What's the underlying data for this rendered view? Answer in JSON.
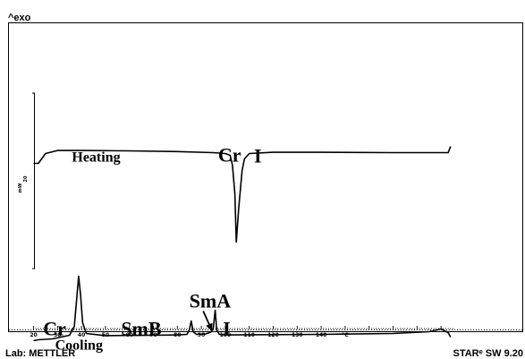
{
  "header": {
    "exo_label": "^exo"
  },
  "footer": {
    "lab_label": "Lab: METTLER",
    "software_label": "STARᵉ SW 9.20"
  },
  "chart_data": {
    "type": "line",
    "x_unit": "°C",
    "xlim": [
      20,
      195
    ],
    "x_ticks": [
      20,
      30,
      40,
      50,
      60,
      70,
      80,
      90,
      100,
      110,
      120,
      130,
      140,
      "°C"
    ],
    "scale_bar": {
      "value": "20",
      "unit": "mW"
    },
    "series": [
      {
        "name": "Heating",
        "color": "#000000",
        "points": [
          [
            20,
            3.0
          ],
          [
            21,
            3.0
          ],
          [
            22,
            3.0
          ],
          [
            25,
            3.55
          ],
          [
            30,
            3.72
          ],
          [
            40,
            3.72
          ],
          [
            60,
            3.7
          ],
          [
            80,
            3.66
          ],
          [
            95,
            3.6
          ],
          [
            100,
            3.55
          ],
          [
            102,
            3.45
          ],
          [
            103,
            2.9
          ],
          [
            104,
            1.3
          ],
          [
            104.6,
            -1.4
          ],
          [
            105.6,
            0.5
          ],
          [
            107,
            2.6
          ],
          [
            108,
            3.25
          ],
          [
            110,
            3.55
          ],
          [
            120,
            3.62
          ],
          [
            140,
            3.62
          ],
          [
            170,
            3.6
          ],
          [
            190,
            3.6
          ],
          [
            193,
            3.6
          ],
          [
            194,
            3.95
          ]
        ]
      },
      {
        "name": "Cooling",
        "color": "#000000",
        "points": [
          [
            20,
            -6.9
          ],
          [
            22,
            -6.85
          ],
          [
            28,
            -6.8
          ],
          [
            35,
            -6.6
          ],
          [
            37,
            -6.1
          ],
          [
            38,
            -4.6
          ],
          [
            38.8,
            -3.3
          ],
          [
            39.6,
            -4.3
          ],
          [
            40.5,
            -5.9
          ],
          [
            42,
            -6.5
          ],
          [
            50,
            -6.62
          ],
          [
            70,
            -6.6
          ],
          [
            80,
            -6.58
          ],
          [
            84,
            -6.55
          ],
          [
            85,
            -6.3
          ],
          [
            85.8,
            -5.8
          ],
          [
            86.6,
            -6.4
          ],
          [
            88,
            -6.55
          ],
          [
            92,
            -6.52
          ],
          [
            94,
            -6.42
          ],
          [
            95,
            -6.2
          ],
          [
            95.8,
            -5.2
          ],
          [
            96.4,
            -6.3
          ],
          [
            97.5,
            -6.55
          ],
          [
            100,
            -6.58
          ],
          [
            140,
            -6.55
          ],
          [
            170,
            -6.5
          ],
          [
            185,
            -6.4
          ],
          [
            190,
            -6.25
          ],
          [
            193,
            -6.45
          ],
          [
            194,
            -6.7
          ]
        ]
      }
    ],
    "annotations": [
      {
        "text": "Heating",
        "x": 36,
        "y": 3.1,
        "size": "medium"
      },
      {
        "text": "Cr",
        "x": 97,
        "y": 3.1,
        "size": "large"
      },
      {
        "text": "I",
        "x": 112,
        "y": 3.05,
        "size": "large"
      },
      {
        "text": "SmA",
        "x": 85,
        "y": -5.05,
        "size": "large"
      },
      {
        "text": "Cr",
        "x": 24,
        "y": -6.6,
        "size": "large"
      },
      {
        "text": "SmB",
        "x": 56.5,
        "y": -6.6,
        "size": "large"
      },
      {
        "text": "I",
        "x": 99,
        "y": -6.6,
        "size": "large"
      },
      {
        "text": "Cooling",
        "x": 29,
        "y": -7.4,
        "size": "medium"
      }
    ]
  }
}
